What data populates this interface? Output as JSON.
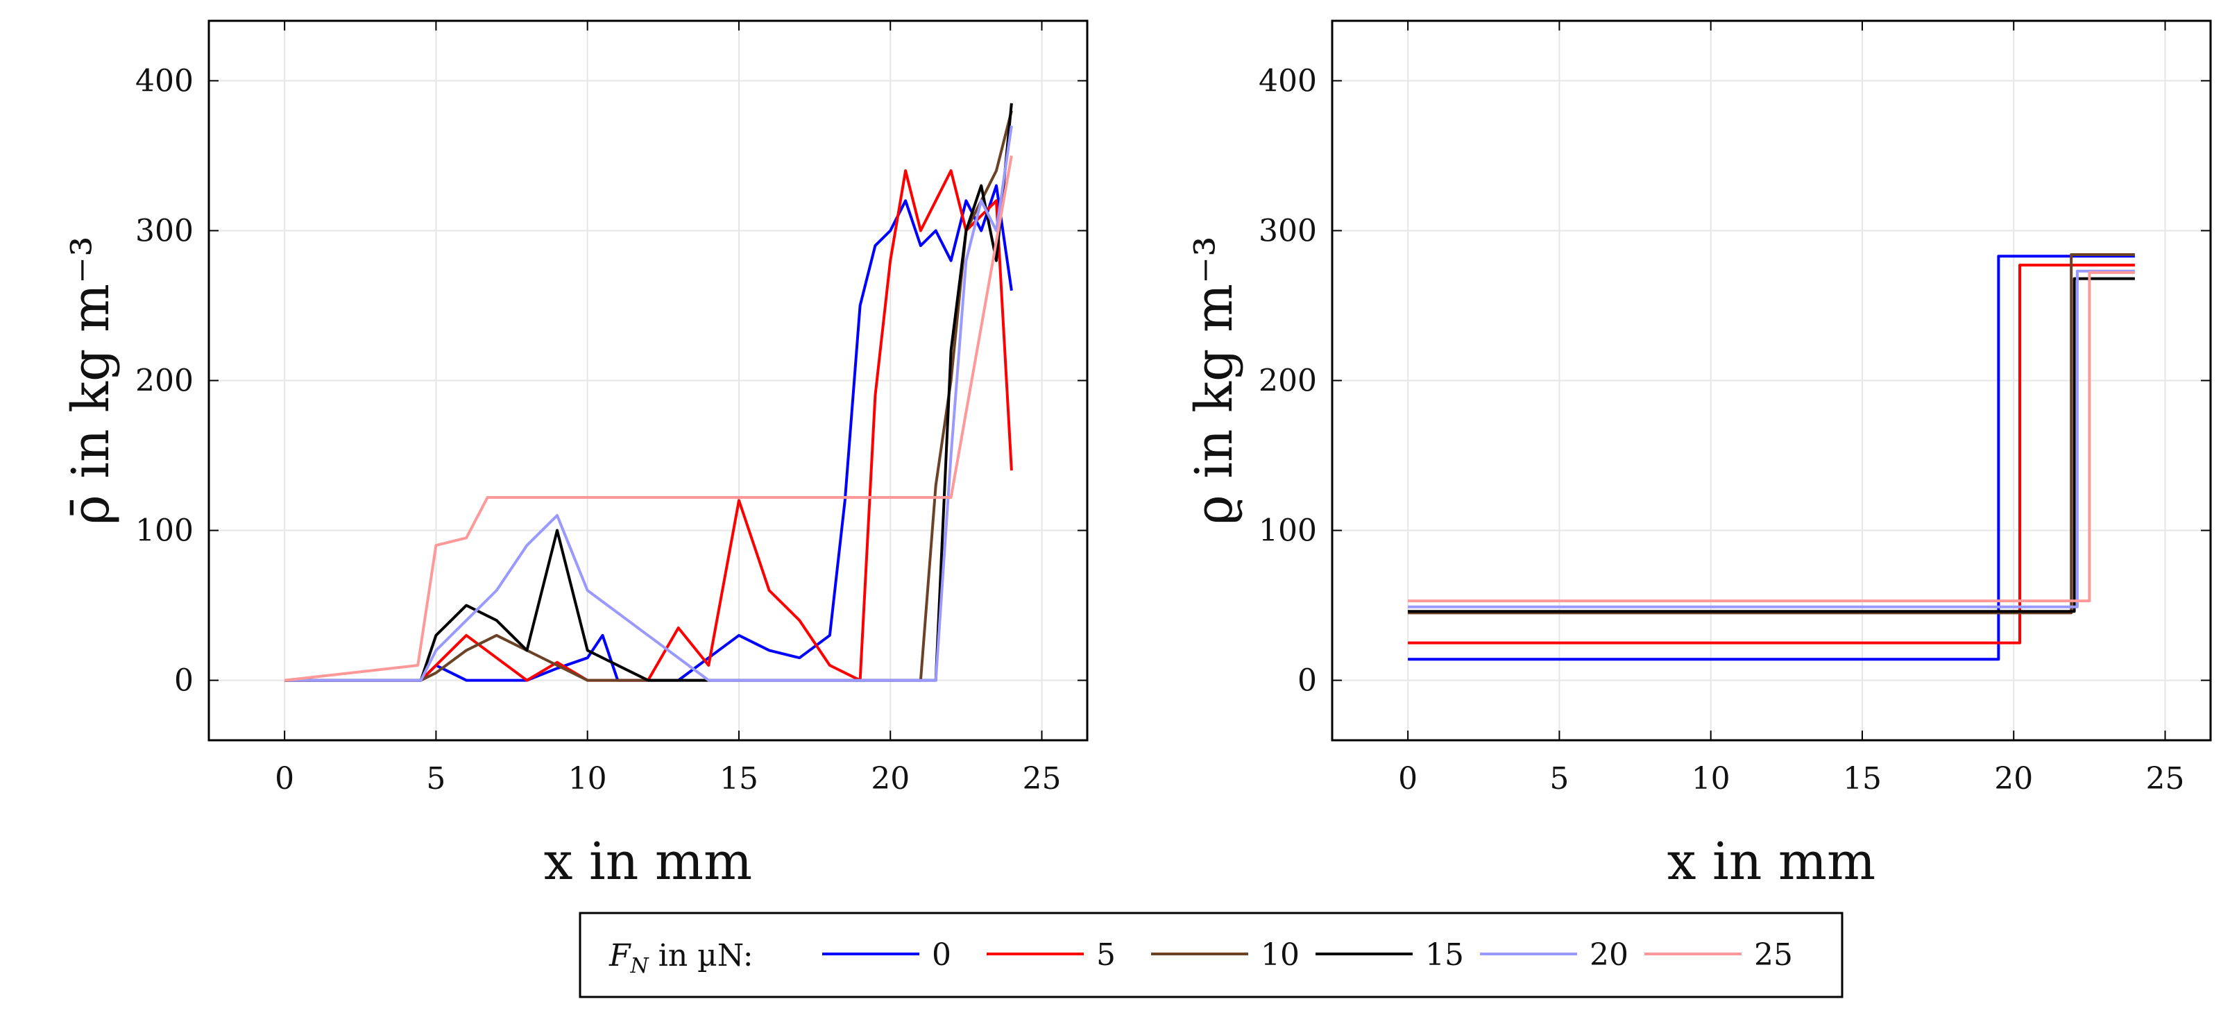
{
  "chart_data": [
    {
      "type": "line",
      "xlabel": "x in mm",
      "ylabel": "ρ̄ in kg m⁻³",
      "xlim": [
        -2.5,
        26.5
      ],
      "ylim": [
        -40,
        440
      ],
      "xticks": [
        0,
        5,
        10,
        15,
        20,
        25
      ],
      "yticks": [
        0,
        100,
        200,
        300,
        400
      ],
      "grid": true,
      "series": [
        {
          "name": "0",
          "color": "#0000ff",
          "x": [
            0,
            4.5,
            5,
            6,
            7,
            8,
            9,
            10,
            10.5,
            11,
            12,
            13,
            14,
            15,
            16,
            17,
            18,
            18.5,
            19,
            19.5,
            20,
            20.5,
            21,
            21.5,
            22,
            22.5,
            23,
            23.5,
            24
          ],
          "y": [
            0,
            0,
            10,
            0,
            0,
            0,
            8,
            15,
            30,
            0,
            0,
            0,
            15,
            30,
            20,
            15,
            30,
            120,
            250,
            290,
            300,
            320,
            290,
            300,
            280,
            320,
            300,
            330,
            260
          ]
        },
        {
          "name": "5",
          "color": "#ff0000",
          "x": [
            0,
            4.5,
            5,
            6,
            7,
            8,
            9,
            10,
            11,
            12,
            13,
            14,
            15,
            16,
            17,
            18,
            19,
            19.5,
            20,
            20.5,
            21,
            21.5,
            22,
            22.5,
            23,
            23.5,
            24
          ],
          "y": [
            0,
            0,
            10,
            30,
            15,
            0,
            12,
            0,
            0,
            0,
            35,
            10,
            120,
            60,
            40,
            10,
            0,
            190,
            280,
            340,
            300,
            320,
            340,
            300,
            310,
            320,
            140
          ]
        },
        {
          "name": "10",
          "color": "#6b4226",
          "x": [
            0,
            4.5,
            5,
            6,
            7,
            8,
            9,
            10,
            12,
            14,
            16,
            18,
            20,
            21,
            21.5,
            22,
            22.5,
            23,
            23.5,
            24
          ],
          "y": [
            0,
            0,
            5,
            20,
            30,
            20,
            10,
            0,
            0,
            0,
            0,
            0,
            0,
            0,
            130,
            200,
            300,
            320,
            340,
            380
          ]
        },
        {
          "name": "15",
          "color": "#000000",
          "x": [
            0,
            4.5,
            5,
            6,
            7,
            8,
            9,
            10,
            12,
            14,
            16,
            18,
            20,
            21.5,
            22,
            22.5,
            23,
            23.5,
            24
          ],
          "y": [
            0,
            0,
            30,
            50,
            40,
            20,
            100,
            20,
            0,
            0,
            0,
            0,
            0,
            0,
            220,
            300,
            330,
            280,
            385
          ]
        },
        {
          "name": "20",
          "color": "#9999ff",
          "x": [
            0,
            4.5,
            5,
            6,
            7,
            8,
            9,
            10,
            12,
            14,
            16,
            18,
            20,
            21.5,
            22,
            22.5,
            23,
            23.5,
            24
          ],
          "y": [
            0,
            0,
            20,
            40,
            60,
            90,
            110,
            60,
            30,
            0,
            0,
            0,
            0,
            0,
            150,
            280,
            320,
            300,
            370
          ]
        },
        {
          "name": "25",
          "color": "#ff9999",
          "x": [
            0,
            4.4,
            5,
            6,
            6.7,
            22,
            24
          ],
          "y": [
            0,
            10,
            90,
            95,
            122,
            122,
            350
          ]
        }
      ]
    },
    {
      "type": "line",
      "xlabel": "x in mm",
      "ylabel": "ϱ in kg m⁻³",
      "xlim": [
        -2.5,
        26.5
      ],
      "ylim": [
        -40,
        440
      ],
      "xticks": [
        0,
        5,
        10,
        15,
        20,
        25
      ],
      "yticks": [
        0,
        100,
        200,
        300,
        400
      ],
      "grid": true,
      "series": [
        {
          "name": "0",
          "color": "#0000ff",
          "x": [
            0,
            19.5,
            19.5,
            24
          ],
          "y": [
            14,
            14,
            283,
            283
          ]
        },
        {
          "name": "5",
          "color": "#ff0000",
          "x": [
            0,
            20.2,
            20.2,
            24
          ],
          "y": [
            25,
            25,
            277,
            277
          ]
        },
        {
          "name": "10",
          "color": "#6b4226",
          "x": [
            0,
            21.9,
            21.9,
            24
          ],
          "y": [
            45,
            45,
            284,
            284
          ]
        },
        {
          "name": "15",
          "color": "#000000",
          "x": [
            0,
            22.0,
            22.0,
            24
          ],
          "y": [
            46,
            46,
            268,
            268
          ]
        },
        {
          "name": "20",
          "color": "#9999ff",
          "x": [
            0,
            22.1,
            22.1,
            24
          ],
          "y": [
            49,
            49,
            273,
            273
          ]
        },
        {
          "name": "25",
          "color": "#ff9999",
          "x": [
            0,
            22.5,
            22.5,
            24
          ],
          "y": [
            53,
            53,
            272,
            272
          ]
        }
      ]
    }
  ],
  "legend": {
    "title_main": "F",
    "title_sub": "N",
    "title_rest": " in µN:",
    "entries": [
      {
        "name": "0",
        "color": "#0000ff"
      },
      {
        "name": "5",
        "color": "#ff0000"
      },
      {
        "name": "10",
        "color": "#6b4226"
      },
      {
        "name": "15",
        "color": "#000000"
      },
      {
        "name": "20",
        "color": "#9999ff"
      },
      {
        "name": "25",
        "color": "#ff9999"
      }
    ]
  }
}
